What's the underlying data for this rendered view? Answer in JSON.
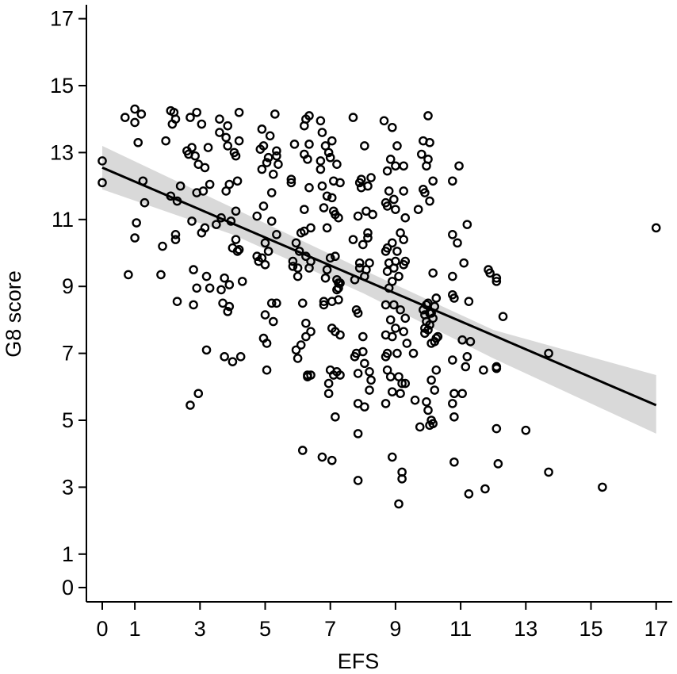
{
  "chart_data": {
    "type": "scatter",
    "xlabel": "EFS",
    "ylabel": "G8 score",
    "xlim": [
      -0.5,
      17.5
    ],
    "ylim": [
      -0.4,
      17.6
    ],
    "x_ticks": [
      0,
      1,
      3,
      5,
      7,
      9,
      11,
      13,
      15,
      17
    ],
    "y_ticks": [
      0,
      1,
      3,
      5,
      7,
      9,
      11,
      13,
      15,
      17
    ],
    "colors": {
      "points": "#000000",
      "fit_line": "#000000",
      "confidence_band": "#d9d9d9"
    },
    "fit_line": {
      "x": [
        0,
        17
      ],
      "y": [
        12.55,
        5.45
      ]
    },
    "confidence_band": {
      "x": [
        0,
        4,
        8,
        12,
        17
      ],
      "upper": [
        13.2,
        11.35,
        9.5,
        7.7,
        6.35
      ],
      "lower": [
        11.9,
        10.55,
        8.8,
        6.85,
        4.6
      ]
    },
    "points": [
      [
        0,
        12.75
      ],
      [
        0,
        12.1
      ],
      [
        0.7,
        14.05
      ],
      [
        0.8,
        9.35
      ],
      [
        1.0,
        14.3
      ],
      [
        1.0,
        13.9
      ],
      [
        1.0,
        10.45
      ],
      [
        1.05,
        10.9
      ],
      [
        1.1,
        13.3
      ],
      [
        1.2,
        14.15
      ],
      [
        1.25,
        12.15
      ],
      [
        1.3,
        11.5
      ],
      [
        1.8,
        9.35
      ],
      [
        1.85,
        10.2
      ],
      [
        1.95,
        13.35
      ],
      [
        2.1,
        14.25
      ],
      [
        2.1,
        11.7
      ],
      [
        2.15,
        13.85
      ],
      [
        2.2,
        14.2
      ],
      [
        2.25,
        14.0
      ],
      [
        2.25,
        10.55
      ],
      [
        2.25,
        10.4
      ],
      [
        2.3,
        11.55
      ],
      [
        2.3,
        8.55
      ],
      [
        2.4,
        12.0
      ],
      [
        2.6,
        13.05
      ],
      [
        2.65,
        12.95
      ],
      [
        2.7,
        14.05
      ],
      [
        2.7,
        5.45
      ],
      [
        2.75,
        13.15
      ],
      [
        2.75,
        10.95
      ],
      [
        2.8,
        9.5
      ],
      [
        2.8,
        8.45
      ],
      [
        2.85,
        12.9
      ],
      [
        2.9,
        14.2
      ],
      [
        2.9,
        11.8
      ],
      [
        2.9,
        8.95
      ],
      [
        2.95,
        5.8
      ],
      [
        2.95,
        12.65
      ],
      [
        3.05,
        13.85
      ],
      [
        3.1,
        11.85
      ],
      [
        3.15,
        12.55
      ],
      [
        3.15,
        10.75
      ],
      [
        3.2,
        9.3
      ],
      [
        3.2,
        7.1
      ],
      [
        3.25,
        13.15
      ],
      [
        3.3,
        12.05
      ],
      [
        3.3,
        8.95
      ],
      [
        3.05,
        10.6
      ],
      [
        3.6,
        14.0
      ],
      [
        3.6,
        13.6
      ],
      [
        3.65,
        11.05
      ],
      [
        3.65,
        8.9
      ],
      [
        3.7,
        8.5
      ],
      [
        3.75,
        9.25
      ],
      [
        3.75,
        6.9
      ],
      [
        3.8,
        13.45
      ],
      [
        3.8,
        11.85
      ],
      [
        3.85,
        13.8
      ],
      [
        3.85,
        13.2
      ],
      [
        3.85,
        8.25
      ],
      [
        3.9,
        12.05
      ],
      [
        3.9,
        9.05
      ],
      [
        3.9,
        8.4
      ],
      [
        3.95,
        10.95
      ],
      [
        4.0,
        10.15
      ],
      [
        4.0,
        6.75
      ],
      [
        4.05,
        13.0
      ],
      [
        4.1,
        12.9
      ],
      [
        4.1,
        11.25
      ],
      [
        4.1,
        10.4
      ],
      [
        4.15,
        12.15
      ],
      [
        4.15,
        10.05
      ],
      [
        4.2,
        14.2
      ],
      [
        4.2,
        13.35
      ],
      [
        4.2,
        10.1
      ],
      [
        4.25,
        6.9
      ],
      [
        4.3,
        9.15
      ],
      [
        3.5,
        10.85
      ],
      [
        4.75,
        9.9
      ],
      [
        4.75,
        11.1
      ],
      [
        4.8,
        9.75
      ],
      [
        4.85,
        13.1
      ],
      [
        4.9,
        13.7
      ],
      [
        4.9,
        12.5
      ],
      [
        4.9,
        9.85
      ],
      [
        4.95,
        13.2
      ],
      [
        4.95,
        11.4
      ],
      [
        4.95,
        7.45
      ],
      [
        5.0,
        9.65
      ],
      [
        5.0,
        10.3
      ],
      [
        5.0,
        8.15
      ],
      [
        5.05,
        12.7
      ],
      [
        5.05,
        7.3
      ],
      [
        5.05,
        6.5
      ],
      [
        5.1,
        10.05
      ],
      [
        5.1,
        12.85
      ],
      [
        5.15,
        13.5
      ],
      [
        5.2,
        11.8
      ],
      [
        5.2,
        10.95
      ],
      [
        5.2,
        8.5
      ],
      [
        5.25,
        7.95
      ],
      [
        5.25,
        12.35
      ],
      [
        5.3,
        14.15
      ],
      [
        5.35,
        13.05
      ],
      [
        5.35,
        12.9
      ],
      [
        5.35,
        10.55
      ],
      [
        5.35,
        8.5
      ],
      [
        5.4,
        12.65
      ],
      [
        5.8,
        12.1
      ],
      [
        5.8,
        12.2
      ],
      [
        5.85,
        9.75
      ],
      [
        5.85,
        9.6
      ],
      [
        5.9,
        13.25
      ],
      [
        5.95,
        10.3
      ],
      [
        5.95,
        7.1
      ],
      [
        6.0,
        9.3
      ],
      [
        6.0,
        9.55
      ],
      [
        6.0,
        6.85
      ],
      [
        6.05,
        10.05
      ],
      [
        6.1,
        10.6
      ],
      [
        6.1,
        7.25
      ],
      [
        6.15,
        4.1
      ],
      [
        6.15,
        8.5
      ],
      [
        6.2,
        13.8
      ],
      [
        6.2,
        12.95
      ],
      [
        6.2,
        11.3
      ],
      [
        6.2,
        10.65
      ],
      [
        6.25,
        14.0
      ],
      [
        6.25,
        9.9
      ],
      [
        6.25,
        7.9
      ],
      [
        6.25,
        7.5
      ],
      [
        6.3,
        12.8
      ],
      [
        6.3,
        6.35
      ],
      [
        6.3,
        6.3
      ],
      [
        6.35,
        14.1
      ],
      [
        6.35,
        13.25
      ],
      [
        6.35,
        11.95
      ],
      [
        6.35,
        9.55
      ],
      [
        6.4,
        10.75
      ],
      [
        6.4,
        9.75
      ],
      [
        6.4,
        7.65
      ],
      [
        6.4,
        6.35
      ],
      [
        6.7,
        13.95
      ],
      [
        6.7,
        12.75
      ],
      [
        6.7,
        12.5
      ],
      [
        6.75,
        13.6
      ],
      [
        6.75,
        12.0
      ],
      [
        6.75,
        3.9
      ],
      [
        6.8,
        8.55
      ],
      [
        6.8,
        11.35
      ],
      [
        6.8,
        8.45
      ],
      [
        6.85,
        13.2
      ],
      [
        6.85,
        9.25
      ],
      [
        6.9,
        11.7
      ],
      [
        6.9,
        10.75
      ],
      [
        6.9,
        9.5
      ],
      [
        6.95,
        13.0
      ],
      [
        6.95,
        6.1
      ],
      [
        6.95,
        5.8
      ],
      [
        7.0,
        12.85
      ],
      [
        7.0,
        9.85
      ],
      [
        7.0,
        6.5
      ],
      [
        7.05,
        13.35
      ],
      [
        7.05,
        11.65
      ],
      [
        7.05,
        8.55
      ],
      [
        7.05,
        7.75
      ],
      [
        7.05,
        3.8
      ],
      [
        7.1,
        12.15
      ],
      [
        7.1,
        11.25
      ],
      [
        7.1,
        6.35
      ],
      [
        7.15,
        11.15
      ],
      [
        7.15,
        9.9
      ],
      [
        7.15,
        7.65
      ],
      [
        7.15,
        5.1
      ],
      [
        7.2,
        12.65
      ],
      [
        7.2,
        9.2
      ],
      [
        7.2,
        8.9
      ],
      [
        7.2,
        6.45
      ],
      [
        7.25,
        11.05
      ],
      [
        7.25,
        9.1
      ],
      [
        7.25,
        8.95
      ],
      [
        7.25,
        8.6
      ],
      [
        7.3,
        12.1
      ],
      [
        7.3,
        7.55
      ],
      [
        7.3,
        6.35
      ],
      [
        7.3,
        9.1
      ],
      [
        7.7,
        14.05
      ],
      [
        7.7,
        10.4
      ],
      [
        7.75,
        9.2
      ],
      [
        7.75,
        6.9
      ],
      [
        7.8,
        8.3
      ],
      [
        7.8,
        7.0
      ],
      [
        7.85,
        11.1
      ],
      [
        7.85,
        8.2
      ],
      [
        7.85,
        6.4
      ],
      [
        7.85,
        5.5
      ],
      [
        7.85,
        4.6
      ],
      [
        7.85,
        3.2
      ],
      [
        7.9,
        12.1
      ],
      [
        7.9,
        9.7
      ],
      [
        7.9,
        9.55
      ],
      [
        7.95,
        12.2
      ],
      [
        7.95,
        11.95
      ],
      [
        8.0,
        10.25
      ],
      [
        8.0,
        7.5
      ],
      [
        8.0,
        7.05
      ],
      [
        8.05,
        13.2
      ],
      [
        8.05,
        9.3
      ],
      [
        8.05,
        6.7
      ],
      [
        8.05,
        5.4
      ],
      [
        8.1,
        11.25
      ],
      [
        8.1,
        9.5
      ],
      [
        8.15,
        12.0
      ],
      [
        8.15,
        10.6
      ],
      [
        8.15,
        10.45
      ],
      [
        8.2,
        9.7
      ],
      [
        8.2,
        6.45
      ],
      [
        8.2,
        5.9
      ],
      [
        8.25,
        12.25
      ],
      [
        8.25,
        6.2
      ],
      [
        8.3,
        11.15
      ],
      [
        8.65,
        13.95
      ],
      [
        8.7,
        11.5
      ],
      [
        8.7,
        10.05
      ],
      [
        8.7,
        8.45
      ],
      [
        8.7,
        7.55
      ],
      [
        8.7,
        6.9
      ],
      [
        8.7,
        5.5
      ],
      [
        8.75,
        12.45
      ],
      [
        8.75,
        11.4
      ],
      [
        8.75,
        10.15
      ],
      [
        8.75,
        9.45
      ],
      [
        8.75,
        7.0
      ],
      [
        8.75,
        6.5
      ],
      [
        8.8,
        11.85
      ],
      [
        8.8,
        9.7
      ],
      [
        8.8,
        8.95
      ],
      [
        8.85,
        12.8
      ],
      [
        8.85,
        8.0
      ],
      [
        8.85,
        6.3
      ],
      [
        8.9,
        13.75
      ],
      [
        8.9,
        10.3
      ],
      [
        8.9,
        9.15
      ],
      [
        8.9,
        7.5
      ],
      [
        8.9,
        5.85
      ],
      [
        8.9,
        3.9
      ],
      [
        8.95,
        11.6
      ],
      [
        8.95,
        9.55
      ],
      [
        8.95,
        8.45
      ],
      [
        9.0,
        12.6
      ],
      [
        9.0,
        11.3
      ],
      [
        9.0,
        9.75
      ],
      [
        9.0,
        7.75
      ],
      [
        9.05,
        13.2
      ],
      [
        9.05,
        10.05
      ],
      [
        9.05,
        7.0
      ],
      [
        9.1,
        9.3
      ],
      [
        9.1,
        6.3
      ],
      [
        9.1,
        2.5
      ],
      [
        9.15,
        10.6
      ],
      [
        9.15,
        8.3
      ],
      [
        9.15,
        5.8
      ],
      [
        9.2,
        6.1
      ],
      [
        9.2,
        3.25
      ],
      [
        9.2,
        3.45
      ],
      [
        9.25,
        12.6
      ],
      [
        9.25,
        11.85
      ],
      [
        9.25,
        10.4
      ],
      [
        9.25,
        9.65
      ],
      [
        9.25,
        7.65
      ],
      [
        9.3,
        11.05
      ],
      [
        9.3,
        9.75
      ],
      [
        9.3,
        8.05
      ],
      [
        9.3,
        6.1
      ],
      [
        9.35,
        7.3
      ],
      [
        9.55,
        7.0
      ],
      [
        9.6,
        5.6
      ],
      [
        9.7,
        11.3
      ],
      [
        9.75,
        4.8
      ],
      [
        9.8,
        12.95
      ],
      [
        9.85,
        13.35
      ],
      [
        9.85,
        11.9
      ],
      [
        9.85,
        8.3
      ],
      [
        9.9,
        11.8
      ],
      [
        9.9,
        8.15
      ],
      [
        9.9,
        7.75
      ],
      [
        9.9,
        7.6
      ],
      [
        9.95,
        12.6
      ],
      [
        9.95,
        8.45
      ],
      [
        9.95,
        7.95
      ],
      [
        9.95,
        5.55
      ],
      [
        10.0,
        14.1
      ],
      [
        10.0,
        12.8
      ],
      [
        10.0,
        8.5
      ],
      [
        10.0,
        7.7
      ],
      [
        10.0,
        5.3
      ],
      [
        10.05,
        13.3
      ],
      [
        10.05,
        11.55
      ],
      [
        10.05,
        8.2
      ],
      [
        10.05,
        7.85
      ],
      [
        10.05,
        4.85
      ],
      [
        10.1,
        8.2
      ],
      [
        10.1,
        7.3
      ],
      [
        10.1,
        6.2
      ],
      [
        10.1,
        5.0
      ],
      [
        10.15,
        12.15
      ],
      [
        10.15,
        9.4
      ],
      [
        10.15,
        8.05
      ],
      [
        10.15,
        4.9
      ],
      [
        10.2,
        8.4
      ],
      [
        10.2,
        7.35
      ],
      [
        10.2,
        5.9
      ],
      [
        10.25,
        8.65
      ],
      [
        10.25,
        7.45
      ],
      [
        10.25,
        6.5
      ],
      [
        10.3,
        7.5
      ],
      [
        10.75,
        12.15
      ],
      [
        10.75,
        10.55
      ],
      [
        10.75,
        9.3
      ],
      [
        10.75,
        8.75
      ],
      [
        10.75,
        6.8
      ],
      [
        10.75,
        5.5
      ],
      [
        10.8,
        8.65
      ],
      [
        10.8,
        5.8
      ],
      [
        10.8,
        5.1
      ],
      [
        10.8,
        3.75
      ],
      [
        10.9,
        10.3
      ],
      [
        10.95,
        12.6
      ],
      [
        11.05,
        7.4
      ],
      [
        11.05,
        5.8
      ],
      [
        11.1,
        9.7
      ],
      [
        11.15,
        6.6
      ],
      [
        11.2,
        10.85
      ],
      [
        11.2,
        6.9
      ],
      [
        11.25,
        8.55
      ],
      [
        11.25,
        2.8
      ],
      [
        11.3,
        7.35
      ],
      [
        11.7,
        6.5
      ],
      [
        11.75,
        2.95
      ],
      [
        11.85,
        9.5
      ],
      [
        11.9,
        9.4
      ],
      [
        12.1,
        9.25
      ],
      [
        12.1,
        9.15
      ],
      [
        12.1,
        6.6
      ],
      [
        12.1,
        6.55
      ],
      [
        12.1,
        4.75
      ],
      [
        12.15,
        3.7
      ],
      [
        12.3,
        8.1
      ],
      [
        13.0,
        4.7
      ],
      [
        13.7,
        7.0
      ],
      [
        13.7,
        3.45
      ],
      [
        15.35,
        3.0
      ],
      [
        17.0,
        10.75
      ]
    ]
  }
}
